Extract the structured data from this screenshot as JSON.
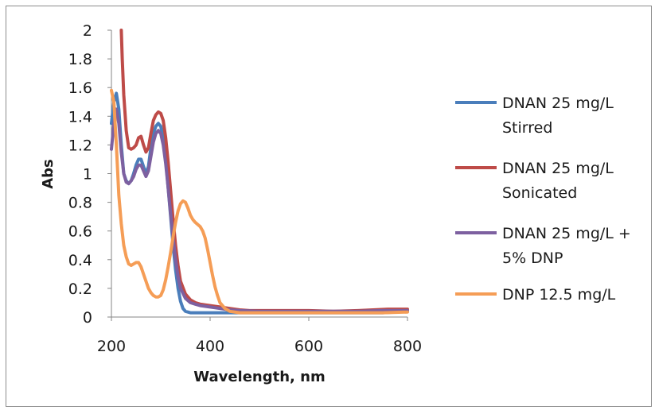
{
  "chart_data": {
    "type": "line",
    "title": "",
    "xlabel": "Wavelength, nm",
    "ylabel": "Abs",
    "xlim": [
      200,
      800
    ],
    "ylim": [
      0,
      2
    ],
    "x_ticks": [
      "200",
      "400",
      "600",
      "800"
    ],
    "y_ticks": [
      "0",
      "0.2",
      "0.4",
      "0.6",
      "0.8",
      "1",
      "1.2",
      "1.4",
      "1.6",
      "1.8",
      "2"
    ],
    "grid": false,
    "legend_position": "right",
    "series": [
      {
        "name": "DNAN 25 mg/L Stirred",
        "legend_lines": [
          "DNAN 25 mg/L",
          "Stirred"
        ],
        "color": "#4a7ebb",
        "points": [
          [
            200,
            1.35
          ],
          [
            205,
            1.5
          ],
          [
            210,
            1.56
          ],
          [
            215,
            1.45
          ],
          [
            220,
            1.2
          ],
          [
            225,
            1.0
          ],
          [
            230,
            0.95
          ],
          [
            235,
            0.93
          ],
          [
            240,
            0.95
          ],
          [
            245,
            1.0
          ],
          [
            250,
            1.06
          ],
          [
            255,
            1.1
          ],
          [
            260,
            1.1
          ],
          [
            265,
            1.05
          ],
          [
            270,
            1.0
          ],
          [
            275,
            1.05
          ],
          [
            280,
            1.18
          ],
          [
            285,
            1.28
          ],
          [
            290,
            1.33
          ],
          [
            295,
            1.35
          ],
          [
            300,
            1.33
          ],
          [
            305,
            1.25
          ],
          [
            310,
            1.1
          ],
          [
            315,
            0.9
          ],
          [
            320,
            0.7
          ],
          [
            325,
            0.5
          ],
          [
            330,
            0.33
          ],
          [
            335,
            0.2
          ],
          [
            340,
            0.11
          ],
          [
            345,
            0.06
          ],
          [
            350,
            0.04
          ],
          [
            360,
            0.03
          ],
          [
            400,
            0.03
          ],
          [
            500,
            0.03
          ],
          [
            600,
            0.03
          ],
          [
            700,
            0.03
          ],
          [
            750,
            0.03
          ],
          [
            800,
            0.04
          ]
        ]
      },
      {
        "name": "DNAN 25 mg/L Sonicated",
        "legend_lines": [
          "DNAN 25 mg/L",
          "Sonicated"
        ],
        "color": "#be4b48",
        "points": [
          [
            220,
            2.0
          ],
          [
            222,
            1.8
          ],
          [
            225,
            1.55
          ],
          [
            230,
            1.3
          ],
          [
            235,
            1.18
          ],
          [
            240,
            1.17
          ],
          [
            245,
            1.18
          ],
          [
            250,
            1.2
          ],
          [
            255,
            1.25
          ],
          [
            260,
            1.26
          ],
          [
            265,
            1.2
          ],
          [
            270,
            1.15
          ],
          [
            275,
            1.18
          ],
          [
            280,
            1.28
          ],
          [
            285,
            1.37
          ],
          [
            290,
            1.41
          ],
          [
            295,
            1.43
          ],
          [
            300,
            1.42
          ],
          [
            305,
            1.37
          ],
          [
            310,
            1.25
          ],
          [
            315,
            1.08
          ],
          [
            320,
            0.88
          ],
          [
            325,
            0.68
          ],
          [
            330,
            0.5
          ],
          [
            335,
            0.36
          ],
          [
            340,
            0.25
          ],
          [
            350,
            0.16
          ],
          [
            360,
            0.12
          ],
          [
            370,
            0.1
          ],
          [
            380,
            0.09
          ],
          [
            390,
            0.085
          ],
          [
            400,
            0.08
          ],
          [
            410,
            0.075
          ],
          [
            420,
            0.07
          ],
          [
            440,
            0.06
          ],
          [
            460,
            0.05
          ],
          [
            480,
            0.045
          ],
          [
            500,
            0.045
          ],
          [
            600,
            0.045
          ],
          [
            650,
            0.04
          ],
          [
            700,
            0.045
          ],
          [
            730,
            0.05
          ],
          [
            760,
            0.055
          ],
          [
            800,
            0.055
          ]
        ]
      },
      {
        "name": "DNAN 25 mg/L + 5% DNP",
        "legend_lines": [
          "DNAN 25 mg/L +",
          "5% DNP"
        ],
        "color": "#7d60a0",
        "points": [
          [
            200,
            1.17
          ],
          [
            205,
            1.35
          ],
          [
            210,
            1.45
          ],
          [
            215,
            1.35
          ],
          [
            220,
            1.15
          ],
          [
            225,
            1.0
          ],
          [
            230,
            0.94
          ],
          [
            235,
            0.93
          ],
          [
            240,
            0.95
          ],
          [
            245,
            0.98
          ],
          [
            250,
            1.03
          ],
          [
            255,
            1.06
          ],
          [
            260,
            1.06
          ],
          [
            265,
            1.02
          ],
          [
            270,
            0.98
          ],
          [
            275,
            1.02
          ],
          [
            280,
            1.12
          ],
          [
            285,
            1.22
          ],
          [
            290,
            1.28
          ],
          [
            295,
            1.3
          ],
          [
            300,
            1.28
          ],
          [
            305,
            1.2
          ],
          [
            310,
            1.07
          ],
          [
            315,
            0.9
          ],
          [
            320,
            0.72
          ],
          [
            325,
            0.55
          ],
          [
            330,
            0.4
          ],
          [
            335,
            0.28
          ],
          [
            340,
            0.2
          ],
          [
            350,
            0.13
          ],
          [
            360,
            0.1
          ],
          [
            370,
            0.09
          ],
          [
            380,
            0.08
          ],
          [
            400,
            0.07
          ],
          [
            420,
            0.06
          ],
          [
            440,
            0.05
          ],
          [
            460,
            0.045
          ],
          [
            500,
            0.04
          ],
          [
            600,
            0.04
          ],
          [
            700,
            0.04
          ],
          [
            750,
            0.045
          ],
          [
            800,
            0.045
          ]
        ]
      },
      {
        "name": "DNP 12.5 mg/L",
        "legend_lines": [
          "DNP 12.5 mg/L"
        ],
        "color": "#f59d56",
        "points": [
          [
            200,
            1.58
          ],
          [
            205,
            1.5
          ],
          [
            210,
            1.2
          ],
          [
            215,
            0.85
          ],
          [
            220,
            0.65
          ],
          [
            225,
            0.5
          ],
          [
            230,
            0.42
          ],
          [
            235,
            0.37
          ],
          [
            240,
            0.36
          ],
          [
            245,
            0.37
          ],
          [
            250,
            0.38
          ],
          [
            255,
            0.38
          ],
          [
            260,
            0.35
          ],
          [
            265,
            0.3
          ],
          [
            270,
            0.25
          ],
          [
            275,
            0.2
          ],
          [
            280,
            0.17
          ],
          [
            285,
            0.15
          ],
          [
            290,
            0.14
          ],
          [
            295,
            0.14
          ],
          [
            300,
            0.15
          ],
          [
            305,
            0.19
          ],
          [
            310,
            0.26
          ],
          [
            315,
            0.35
          ],
          [
            320,
            0.45
          ],
          [
            325,
            0.56
          ],
          [
            330,
            0.66
          ],
          [
            335,
            0.74
          ],
          [
            340,
            0.79
          ],
          [
            345,
            0.81
          ],
          [
            350,
            0.8
          ],
          [
            355,
            0.76
          ],
          [
            360,
            0.71
          ],
          [
            365,
            0.68
          ],
          [
            370,
            0.66
          ],
          [
            380,
            0.63
          ],
          [
            385,
            0.6
          ],
          [
            390,
            0.55
          ],
          [
            395,
            0.47
          ],
          [
            400,
            0.38
          ],
          [
            405,
            0.29
          ],
          [
            410,
            0.21
          ],
          [
            415,
            0.15
          ],
          [
            420,
            0.1
          ],
          [
            430,
            0.06
          ],
          [
            440,
            0.04
          ],
          [
            460,
            0.03
          ],
          [
            500,
            0.03
          ],
          [
            600,
            0.03
          ],
          [
            700,
            0.03
          ],
          [
            750,
            0.03
          ],
          [
            800,
            0.035
          ]
        ]
      }
    ]
  }
}
